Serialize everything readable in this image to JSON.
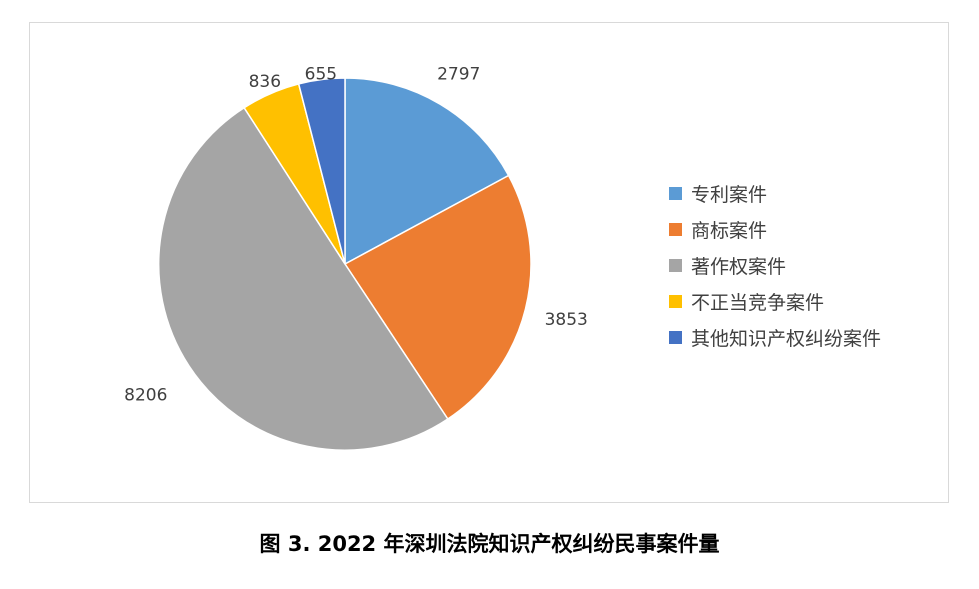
{
  "chart_data": {
    "type": "pie",
    "categories": [
      "专利案件",
      "商标案件",
      "著作权案件",
      "不正当竞争案件",
      "其他知识产权纠纷案件"
    ],
    "values": [
      2797,
      3853,
      8206,
      836,
      655
    ],
    "data_labels": [
      "2797",
      "3853",
      "8206",
      "836",
      "655"
    ],
    "colors": [
      "#5b9bd5",
      "#ed7d31",
      "#a5a5a5",
      "#ffc000",
      "#4472c4"
    ],
    "start_angle_deg": 0,
    "direction": "clockwise",
    "legend_placement": "right",
    "title": ""
  },
  "caption": "图 3.  2022 年深圳法院知识产权纠纷民事案件量"
}
